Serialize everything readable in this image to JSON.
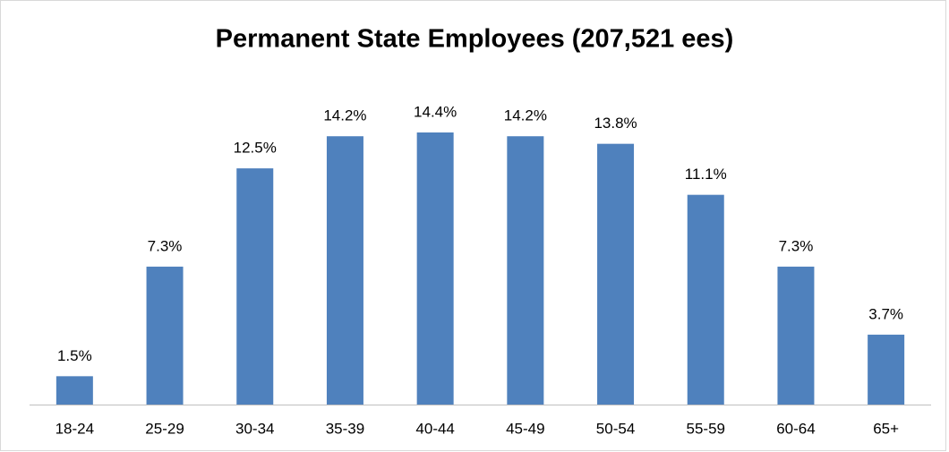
{
  "chart_data": {
    "type": "bar",
    "title": "Permanent State Employees (207,521 ees)",
    "categories": [
      "18-24",
      "25-29",
      "30-34",
      "35-39",
      "40-44",
      "45-49",
      "50-54",
      "55-59",
      "60-64",
      "65+"
    ],
    "values": [
      1.5,
      7.3,
      12.5,
      14.2,
      14.4,
      14.2,
      13.8,
      11.1,
      7.3,
      3.7
    ],
    "value_labels": [
      "1.5%",
      "7.3%",
      "12.5%",
      "14.2%",
      "14.4%",
      "14.2%",
      "13.8%",
      "11.1%",
      "7.3%",
      "3.7%"
    ],
    "color": "#4f81bd"
  }
}
